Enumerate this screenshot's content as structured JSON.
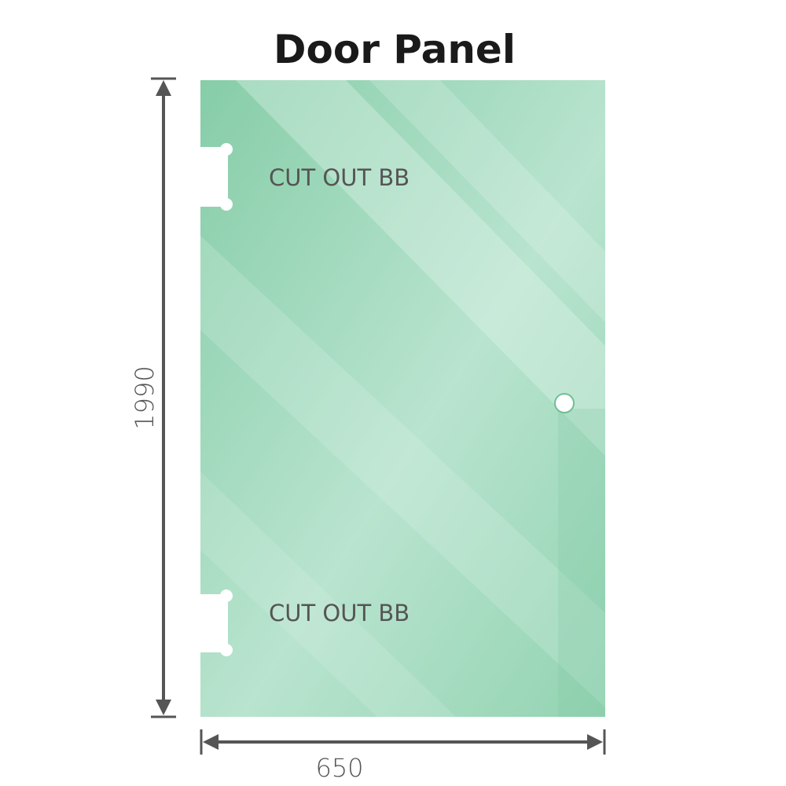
{
  "title": "Door Panel",
  "cutout_top_label": "CUT OUT BB",
  "cutout_bottom_label": "CUT OUT BB",
  "height_dimension": "1990",
  "width_dimension": "650",
  "colors": {
    "glass": "#8fd1ae",
    "glass_light": "#bde6d2",
    "dimension_line": "#555555"
  }
}
